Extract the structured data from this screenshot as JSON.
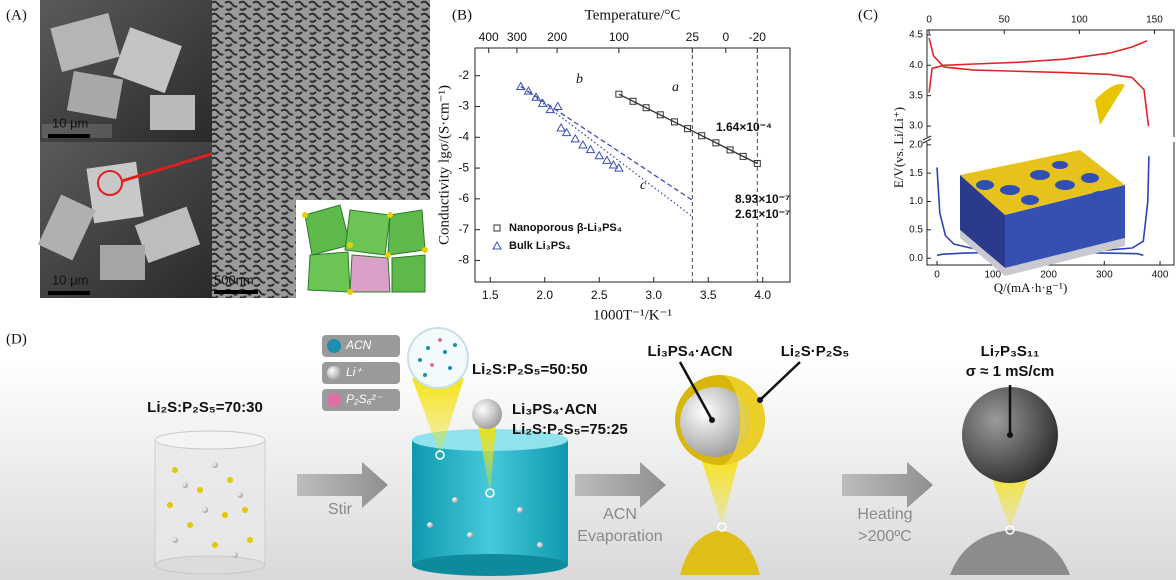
{
  "panel_labels": [
    "(A)",
    "(B)",
    "(C)",
    "(D)"
  ],
  "sem_scale_bars": [
    "10 μm",
    "10 μm",
    "500nm"
  ],
  "chart_data": [
    {
      "type": "scatter",
      "x2label": "Temperature/°C",
      "xlabel": "1000T⁻¹/K⁻¹",
      "ylabel": "Conductivity lgσ/(S·cm⁻¹)",
      "xlim": [
        1.36,
        4.25
      ],
      "ylim": [
        -8.7,
        -1.1
      ],
      "xticks": [
        1.5,
        {
          "value": 2,
          "label": "2.0"
        },
        2.5,
        {
          "value": 3,
          "label": "3.0"
        },
        3.5,
        {
          "value": 4,
          "label": "4.0"
        }
      ],
      "yticks": [
        -2,
        -3,
        -4,
        -5,
        -6,
        -7,
        -8
      ],
      "x2ticks": [
        400,
        300,
        200,
        100,
        25,
        0,
        -20
      ],
      "series": [
        {
          "name": "Nanoporous β-Li₃PS₄",
          "color": "#333333",
          "marker": "square",
          "x": [
            2.68,
            2.81,
            2.93,
            3.06,
            3.19,
            3.31,
            3.44,
            3.57,
            3.7,
            3.82,
            3.95
          ],
          "values": [
            -2.6,
            -2.83,
            -3.04,
            -3.27,
            -3.5,
            -3.72,
            -3.95,
            -4.18,
            -4.41,
            -4.62,
            -4.85
          ]
        },
        {
          "name": "Bulk Li₃PS₄",
          "color": "#3a4fb5",
          "marker": "triangle",
          "x": [
            1.78,
            1.85,
            1.92,
            1.98,
            2.05,
            2.12,
            2.15,
            2.2,
            2.28,
            2.35,
            2.42,
            2.5,
            2.57,
            2.63,
            2.68
          ],
          "values": [
            -2.35,
            -2.5,
            -2.7,
            -2.9,
            -3.1,
            -3.0,
            -3.7,
            -3.85,
            -4.05,
            -4.25,
            -4.4,
            -4.6,
            -4.75,
            -4.9,
            -5.0
          ]
        }
      ],
      "fits": [
        {
          "color": "#333333",
          "style": "solid",
          "x": [
            2.68,
            3.95
          ],
          "values": [
            -2.6,
            -4.85
          ]
        },
        {
          "color": "#3a4fb5",
          "style": "dashed",
          "x": [
            1.78,
            3.356
          ],
          "values": [
            -2.35,
            -6.05
          ]
        },
        {
          "color": "#3a4fb5",
          "style": "dotted",
          "x": [
            1.78,
            3.356
          ],
          "values": [
            -2.35,
            -6.58
          ]
        }
      ],
      "annotations": [
        "a",
        "b",
        "c",
        "1.64×10⁻⁴",
        "8.93×10⁻⁷",
        "2.61×10⁻⁷"
      ]
    },
    {
      "type": "line",
      "xlabel": "Q/(mA·h·g⁻¹)",
      "ylabel": "E/V(vs. Li/Li⁺)",
      "xlim": [
        -18,
        425
      ],
      "x2lim": [
        -1.4,
        163
      ],
      "ylim": [
        -0.12,
        2.05
      ],
      "y2lim": [
        2.82,
        4.58
      ],
      "xticks": [
        0,
        100,
        200,
        300,
        400
      ],
      "x2ticks": [
        0,
        50,
        100,
        150
      ],
      "yticks": [
        {
          "value": 0,
          "label": "0.0"
        },
        {
          "value": 0.5,
          "label": "0.5"
        },
        {
          "value": 1,
          "label": "1.0"
        },
        {
          "value": 1.5,
          "label": "1.5"
        },
        {
          "value": 2,
          "label": "2.0"
        }
      ],
      "y2ticks": [
        {
          "value": 3,
          "label": "3.0"
        },
        {
          "value": 3.5,
          "label": "3.5"
        },
        {
          "value": 4,
          "label": "4.0"
        },
        {
          "value": 4.5,
          "label": "4.5"
        }
      ],
      "series": [
        {
          "color": "#e0262a",
          "axis": "y2",
          "x": [
            0,
            2,
            10,
            30,
            60,
            90,
            120,
            135,
            145
          ],
          "values": [
            3.55,
            3.95,
            4.0,
            4.02,
            4.05,
            4.1,
            4.2,
            4.3,
            4.4
          ]
        },
        {
          "color": "#e0262a",
          "axis": "y2",
          "x": [
            0,
            3,
            10,
            30,
            60,
            90,
            120,
            135,
            143,
            146
          ],
          "values": [
            4.45,
            4.15,
            3.97,
            3.92,
            3.9,
            3.88,
            3.85,
            3.8,
            3.6,
            3.0
          ]
        },
        {
          "color": "#2b44b8",
          "x": [
            0,
            5,
            15,
            30,
            60,
            100,
            200,
            300,
            360,
            370
          ],
          "values": [
            1.6,
            0.8,
            0.4,
            0.25,
            0.18,
            0.14,
            0.11,
            0.09,
            0.08,
            0.05
          ]
        },
        {
          "color": "#2b44b8",
          "x": [
            0,
            10,
            50,
            100,
            200,
            300,
            350,
            370,
            378,
            380
          ],
          "values": [
            0.05,
            0.07,
            0.09,
            0.1,
            0.12,
            0.14,
            0.18,
            0.3,
            1.0,
            1.8
          ]
        }
      ]
    }
  ],
  "diagram": {
    "start_ratio": "Li₂S:P₂S₅=70:30",
    "step1": "Stir",
    "legend": [
      "ACN",
      "Li⁺",
      "P₂S₆²⁻"
    ],
    "solution_ratio": "Li₂S:P₂S₅=50:50",
    "precipitate": [
      "Li₃PS₄·ACN",
      "Li₂S:P₂S₅=75:25"
    ],
    "step2": [
      "ACN",
      "Evaporation"
    ],
    "core": "Li₃PS₄·ACN",
    "shell": "Li₂S·P₂S₅",
    "step3": [
      "Heating",
      ">200ºC"
    ],
    "product": [
      "Li₇P₃S₁₁",
      "σ ≈ 1 mS/cm"
    ]
  }
}
